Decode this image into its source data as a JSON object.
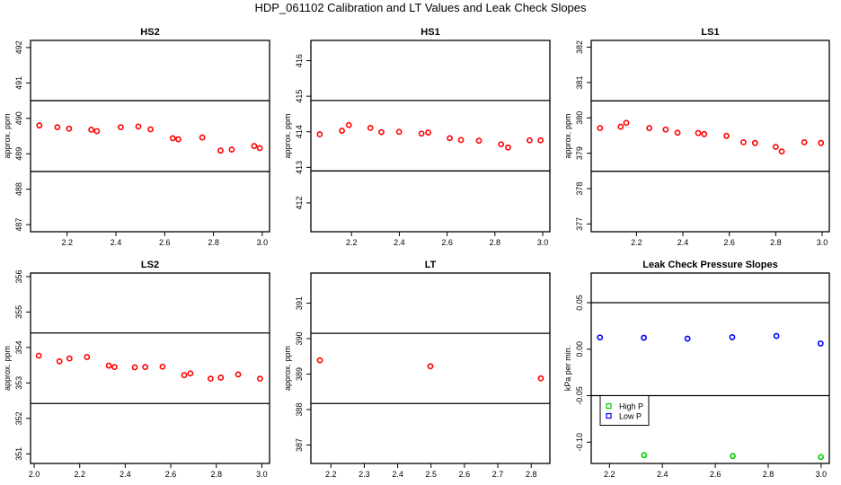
{
  "title": "HDP_061102  Calibration and LT Values and Leak Check Slopes",
  "chart_data": [
    {
      "type": "scatter",
      "title": "HS2",
      "ylabel": "approx. ppm",
      "xlim": [
        2.05,
        3.03
      ],
      "ylim": [
        486.8,
        492.2
      ],
      "xticks": [
        "2.2",
        "2.4",
        "2.6",
        "2.8",
        "3.0"
      ],
      "yticks": [
        "487",
        "488",
        "489",
        "490",
        "491",
        "492"
      ],
      "hlines": [
        490.5,
        488.5
      ],
      "series": [
        {
          "color": "#ff0000",
          "x": [
            2.086,
            2.16,
            2.208,
            2.299,
            2.322,
            2.42,
            2.492,
            2.542,
            2.633,
            2.656,
            2.754,
            2.829,
            2.875,
            2.967,
            2.99
          ],
          "y": [
            489.8,
            489.75,
            489.71,
            489.68,
            489.64,
            489.75,
            489.77,
            489.69,
            489.44,
            489.41,
            489.46,
            489.09,
            489.12,
            489.22,
            489.16
          ]
        }
      ]
    },
    {
      "type": "scatter",
      "title": "HS1",
      "ylabel": "approx. ppm",
      "xlim": [
        2.03,
        3.03
      ],
      "ylim": [
        411.19,
        416.57
      ],
      "xticks": [
        "2.2",
        "2.4",
        "2.6",
        "2.8",
        "3.0"
      ],
      "yticks": [
        "412",
        "413",
        "414",
        "415",
        "416"
      ],
      "hlines": [
        414.88,
        412.9
      ],
      "series": [
        {
          "color": "#ff0000",
          "x": [
            2.067,
            2.16,
            2.189,
            2.279,
            2.325,
            2.399,
            2.493,
            2.521,
            2.611,
            2.658,
            2.733,
            2.826,
            2.855,
            2.945,
            2.991
          ],
          "y": [
            413.93,
            414.03,
            414.19,
            414.11,
            413.99,
            414.0,
            413.95,
            413.98,
            413.82,
            413.77,
            413.75,
            413.65,
            413.56,
            413.76,
            413.76
          ]
        }
      ]
    },
    {
      "type": "scatter",
      "title": "LS1",
      "ylabel": "approx. ppm",
      "xlim": [
        2.005,
        3.031
      ],
      "ylim": [
        376.78,
        382.19
      ],
      "xticks": [
        "2.2",
        "2.4",
        "2.6",
        "2.8",
        "3.0"
      ],
      "yticks": [
        "377",
        "378",
        "379",
        "380",
        "381",
        "382"
      ],
      "hlines": [
        380.48,
        378.49
      ],
      "series": [
        {
          "color": "#ff0000",
          "x": [
            2.043,
            2.132,
            2.156,
            2.255,
            2.326,
            2.377,
            2.466,
            2.492,
            2.588,
            2.661,
            2.711,
            2.8,
            2.826,
            2.923,
            2.995
          ],
          "y": [
            379.71,
            379.75,
            379.86,
            379.71,
            379.67,
            379.58,
            379.57,
            379.54,
            379.49,
            379.31,
            379.29,
            379.18,
            379.05,
            379.31,
            379.29
          ]
        }
      ]
    },
    {
      "type": "scatter",
      "title": "LS2",
      "ylabel": "approx. ppm",
      "xlim": [
        1.984,
        3.034
      ],
      "ylim": [
        350.73,
        356.1
      ],
      "xticks": [
        "2.0",
        "2.2",
        "2.4",
        "2.6",
        "2.8",
        "3.0"
      ],
      "yticks": [
        "351",
        "352",
        "353",
        "354",
        "355",
        "356"
      ],
      "hlines": [
        354.41,
        352.42
      ],
      "series": [
        {
          "color": "#ff0000",
          "x": [
            2.02,
            2.111,
            2.155,
            2.232,
            2.328,
            2.353,
            2.442,
            2.488,
            2.564,
            2.659,
            2.686,
            2.775,
            2.82,
            2.896,
            2.992
          ],
          "y": [
            353.77,
            353.61,
            353.69,
            353.73,
            353.49,
            353.45,
            353.44,
            353.45,
            353.46,
            353.22,
            353.27,
            353.12,
            353.15,
            353.24,
            353.12
          ]
        }
      ]
    },
    {
      "type": "scatter",
      "title": "LT",
      "ylabel": "approx. ppm",
      "xlim": [
        2.14,
        2.856
      ],
      "ylim": [
        386.48,
        391.85
      ],
      "xticks": [
        "2.2",
        "2.3",
        "2.4",
        "2.5",
        "2.6",
        "2.7",
        "2.8"
      ],
      "yticks": [
        "387",
        "388",
        "389",
        "390",
        "391"
      ],
      "hlines": [
        390.15,
        388.17
      ],
      "series": [
        {
          "color": "#ff0000",
          "x": [
            2.167,
            2.498,
            2.829
          ],
          "y": [
            389.39,
            389.22,
            388.88
          ]
        }
      ]
    },
    {
      "type": "scatter",
      "title": "Leak Check Pressure Slopes",
      "ylabel": "kPa per min.",
      "xlim": [
        2.131,
        3.031
      ],
      "ylim": [
        -0.1229,
        0.0819
      ],
      "xticks": [
        "2.2",
        "2.4",
        "2.6",
        "2.8",
        "3.0"
      ],
      "yticks": [
        "-0.10",
        "-0.05",
        "0.00",
        "0.05"
      ],
      "hlines": [
        0.05,
        -0.05
      ],
      "legend": "bottom-left",
      "series": [
        {
          "name": "High P",
          "color": "#00cc00",
          "x": [
            2.331,
            2.666,
            2.999
          ],
          "y": [
            -0.114,
            -0.115,
            -0.116
          ]
        },
        {
          "name": "Low P",
          "color": "#0000ff",
          "x": [
            2.164,
            2.33,
            2.495,
            2.664,
            2.831,
            2.998
          ],
          "y": [
            0.0126,
            0.0123,
            0.0113,
            0.0129,
            0.0142,
            0.0061
          ]
        }
      ]
    }
  ]
}
